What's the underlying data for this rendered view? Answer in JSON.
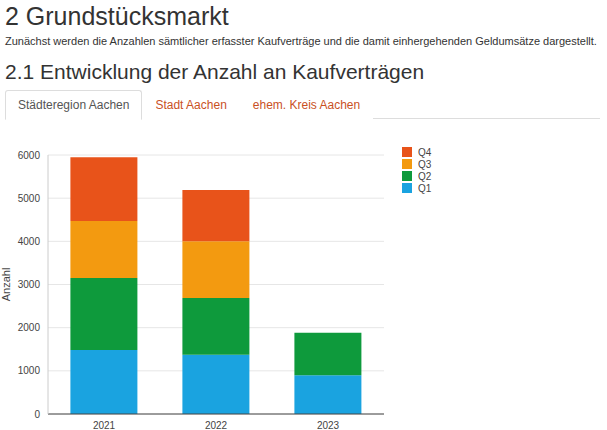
{
  "header": {
    "title": "2 Grundstücksmarkt",
    "text": "Zunächst werden die Anzahlen sämtlicher erfasster Kaufverträge und die damit einhergehenden Geldumsätze dargestellt.",
    "subtitle": "2.1 Entwicklung der Anzahl an Kaufverträgen"
  },
  "tabs": [
    "Städteregion Aachen",
    "Stadt Aachen",
    "ehem. Kreis Aachen"
  ],
  "chart_data": {
    "type": "bar",
    "stacked": true,
    "y_label": "Anzahl",
    "categories": [
      "2021",
      "2022",
      "2023"
    ],
    "series": [
      {
        "name": "Q1",
        "color": "#1aa3e0",
        "values": [
          1480,
          1370,
          900
        ]
      },
      {
        "name": "Q2",
        "color": "#0e9a3c",
        "values": [
          1670,
          1320,
          980
        ]
      },
      {
        "name": "Q3",
        "color": "#f39a10",
        "values": [
          1320,
          1310,
          null
        ]
      },
      {
        "name": "Q4",
        "color": "#e8531a",
        "values": [
          1480,
          1190,
          null
        ]
      }
    ],
    "ylim": [
      0,
      6000
    ],
    "yticks": [
      0,
      1000,
      2000,
      3000,
      4000,
      5000,
      6000
    ],
    "grid": true,
    "legend": "right"
  }
}
